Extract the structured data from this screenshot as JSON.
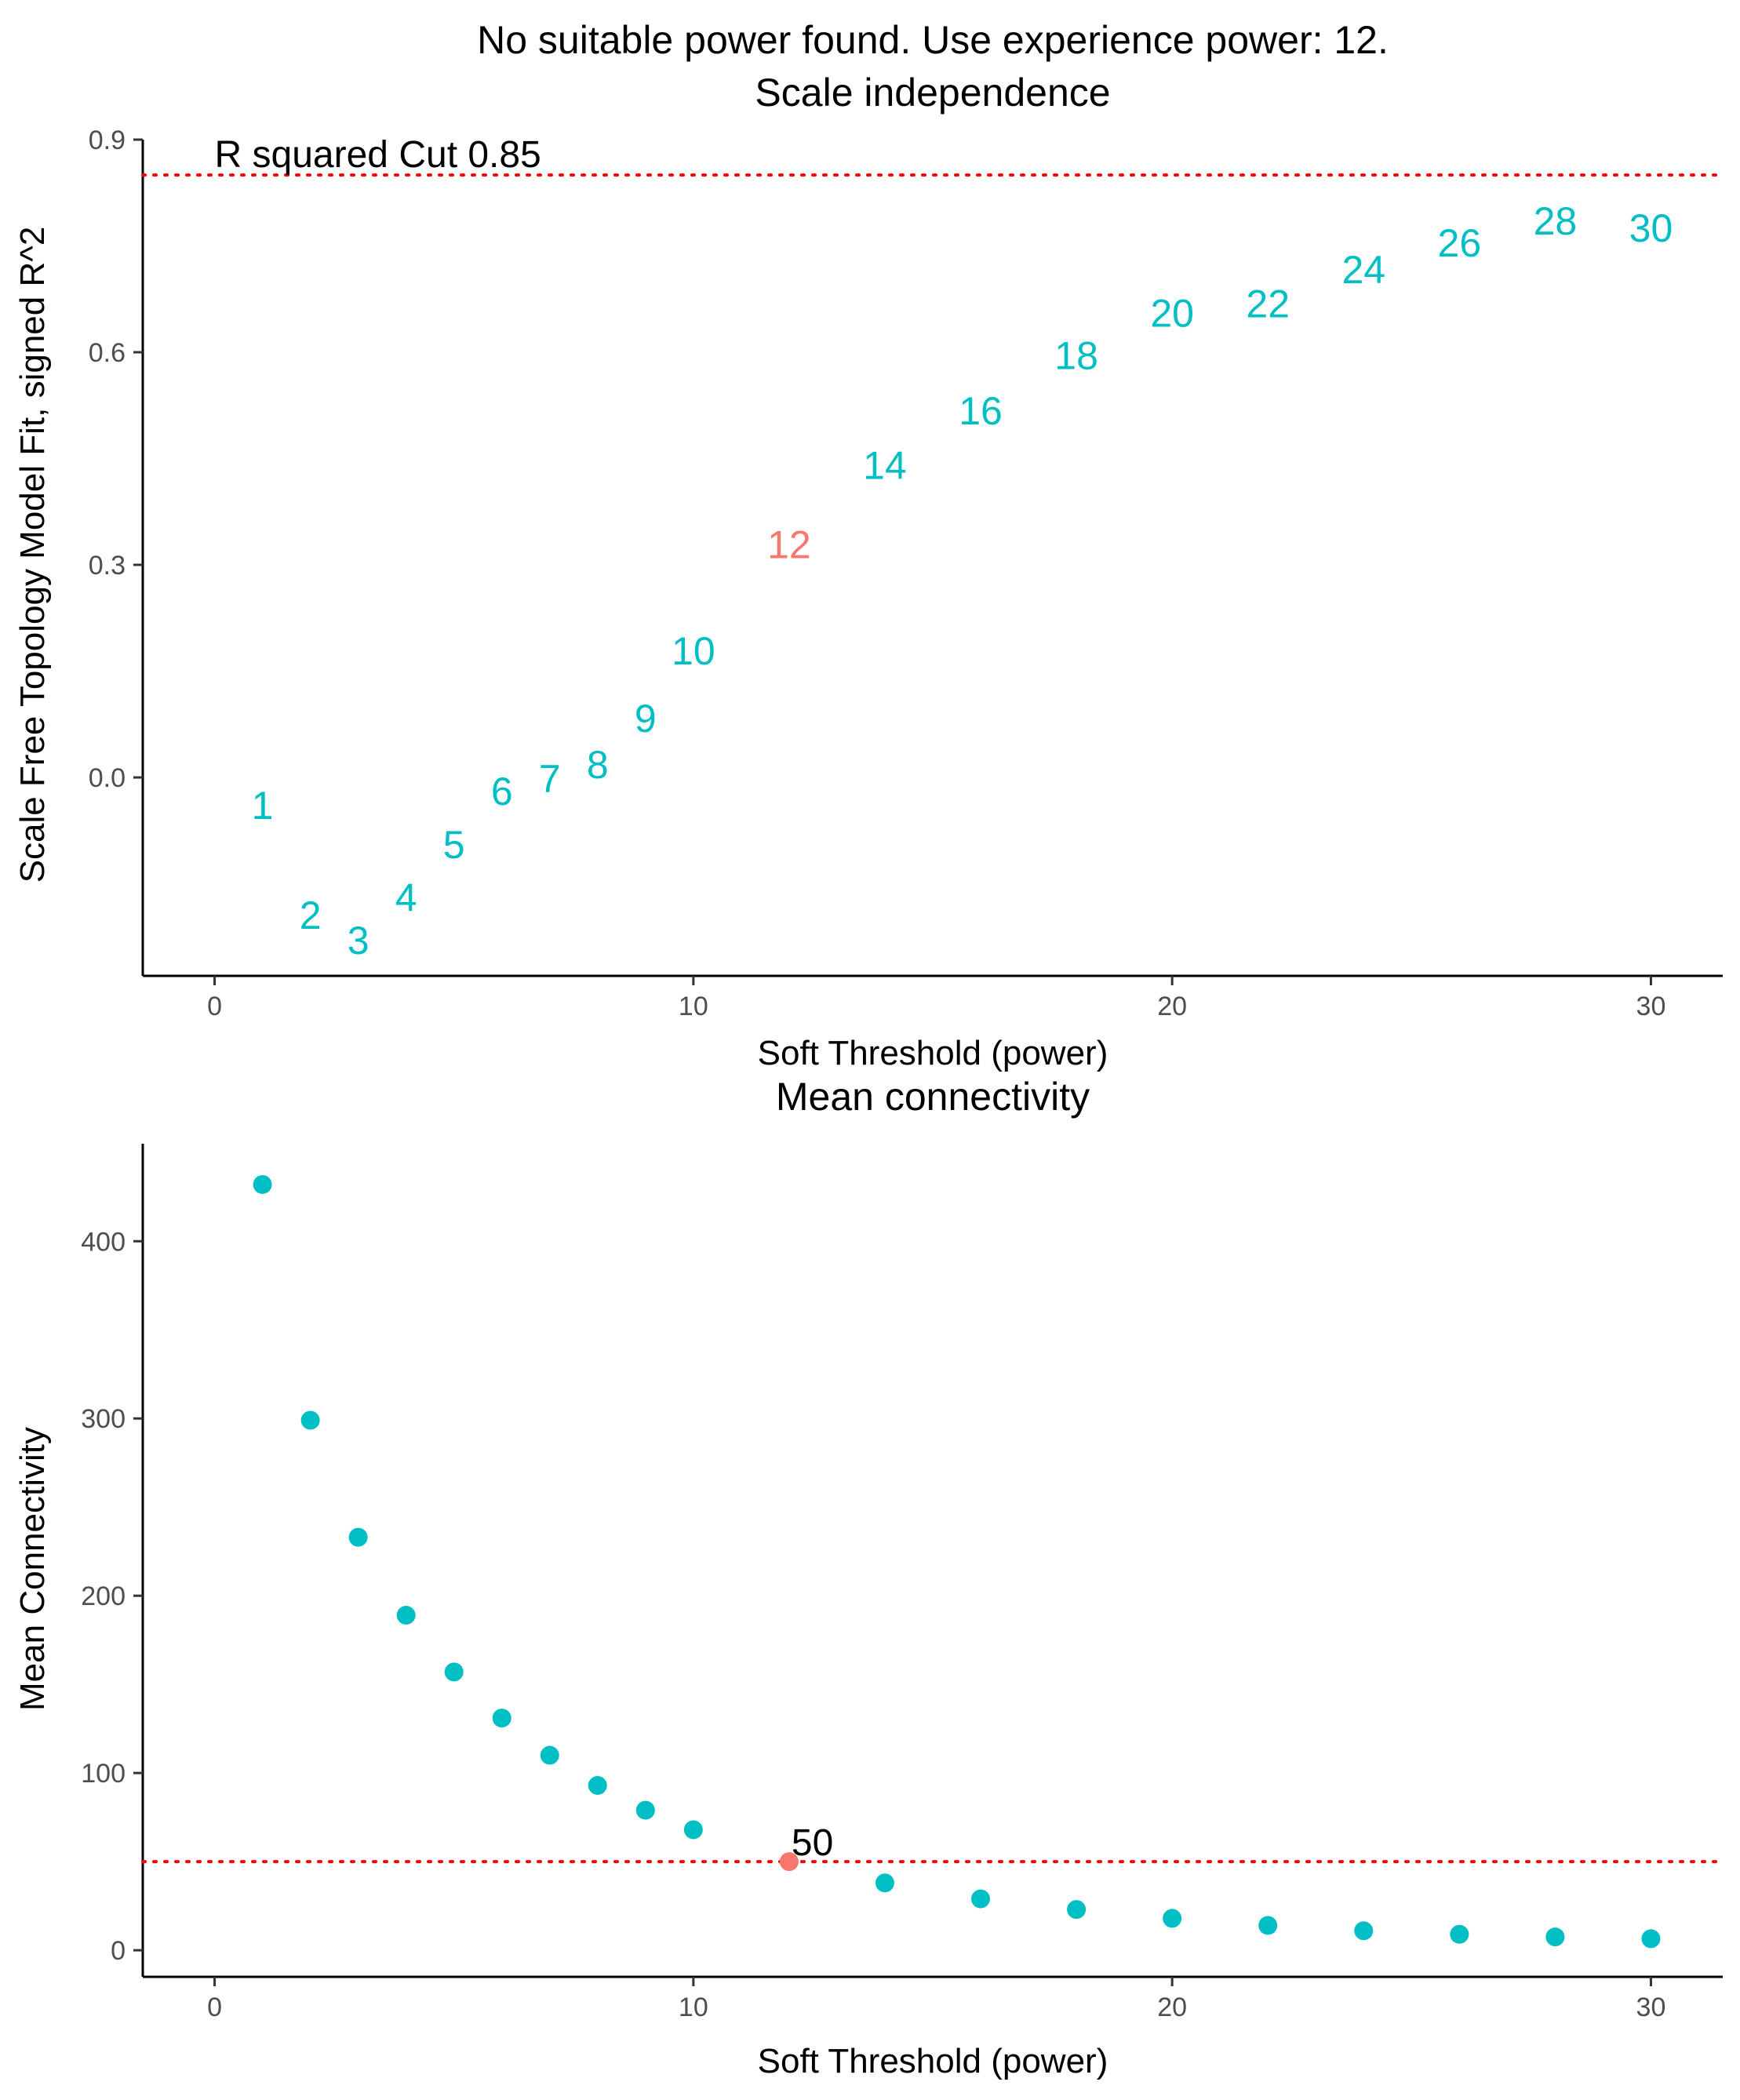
{
  "figure": {
    "main_title": "No suitable power found. Use experience power: 12.",
    "colors": {
      "default": "#00bfc4",
      "highlight": "#f8766d",
      "cut_line": "#ff0000"
    }
  },
  "chart_data": [
    {
      "type": "scatter",
      "marker": "text-label",
      "title": "Scale independence",
      "xlabel": "Soft Threshold (power)",
      "ylabel": "Scale Free Topology Model Fit, signed R^2",
      "xlim": [
        -1.5,
        31.5
      ],
      "ylim": [
        -0.28,
        0.9
      ],
      "x_ticks": [
        0,
        10,
        20,
        30
      ],
      "y_ticks": [
        0.0,
        0.3,
        0.6,
        0.9
      ],
      "y_tick_labels": [
        "0.0",
        "0.3",
        "0.6",
        "0.9"
      ],
      "grid": false,
      "cut_line": {
        "y": 0.85,
        "label": "R squared Cut 0.85"
      },
      "highlight_power": 12,
      "points": [
        {
          "x": 1,
          "y": -0.04,
          "label": "1"
        },
        {
          "x": 2,
          "y": -0.195,
          "label": "2"
        },
        {
          "x": 3,
          "y": -0.23,
          "label": "3"
        },
        {
          "x": 4,
          "y": -0.17,
          "label": "4"
        },
        {
          "x": 5,
          "y": -0.095,
          "label": "5"
        },
        {
          "x": 6,
          "y": -0.02,
          "label": "6"
        },
        {
          "x": 7,
          "y": -0.002,
          "label": "7"
        },
        {
          "x": 8,
          "y": 0.018,
          "label": "8"
        },
        {
          "x": 9,
          "y": 0.083,
          "label": "9"
        },
        {
          "x": 10,
          "y": 0.178,
          "label": "10"
        },
        {
          "x": 12,
          "y": 0.328,
          "label": "12"
        },
        {
          "x": 14,
          "y": 0.44,
          "label": "14"
        },
        {
          "x": 16,
          "y": 0.517,
          "label": "16"
        },
        {
          "x": 18,
          "y": 0.595,
          "label": "18"
        },
        {
          "x": 20,
          "y": 0.655,
          "label": "20"
        },
        {
          "x": 22,
          "y": 0.668,
          "label": "22"
        },
        {
          "x": 24,
          "y": 0.716,
          "label": "24"
        },
        {
          "x": 26,
          "y": 0.754,
          "label": "26"
        },
        {
          "x": 28,
          "y": 0.785,
          "label": "28"
        },
        {
          "x": 30,
          "y": 0.775,
          "label": "30"
        }
      ]
    },
    {
      "type": "scatter",
      "marker": "dot",
      "title": "Mean connectivity",
      "xlabel": "Soft Threshold (power)",
      "ylabel": "Mean Connectivity",
      "xlim": [
        -1.5,
        31.5
      ],
      "ylim": [
        -15,
        455
      ],
      "x_ticks": [
        0,
        10,
        20,
        30
      ],
      "y_ticks": [
        0,
        100,
        200,
        300,
        400
      ],
      "grid": false,
      "cut_line": {
        "y": 50,
        "label": "50"
      },
      "highlight_power": 12,
      "points": [
        {
          "x": 1,
          "y": 432
        },
        {
          "x": 2,
          "y": 299
        },
        {
          "x": 3,
          "y": 233
        },
        {
          "x": 4,
          "y": 189
        },
        {
          "x": 5,
          "y": 157
        },
        {
          "x": 6,
          "y": 131
        },
        {
          "x": 7,
          "y": 110
        },
        {
          "x": 8,
          "y": 93
        },
        {
          "x": 9,
          "y": 79
        },
        {
          "x": 10,
          "y": 68
        },
        {
          "x": 12,
          "y": 50
        },
        {
          "x": 14,
          "y": 38
        },
        {
          "x": 16,
          "y": 29
        },
        {
          "x": 18,
          "y": 23
        },
        {
          "x": 20,
          "y": 18
        },
        {
          "x": 22,
          "y": 14
        },
        {
          "x": 24,
          "y": 11
        },
        {
          "x": 26,
          "y": 9
        },
        {
          "x": 28,
          "y": 7.5
        },
        {
          "x": 30,
          "y": 6.5
        }
      ]
    }
  ]
}
